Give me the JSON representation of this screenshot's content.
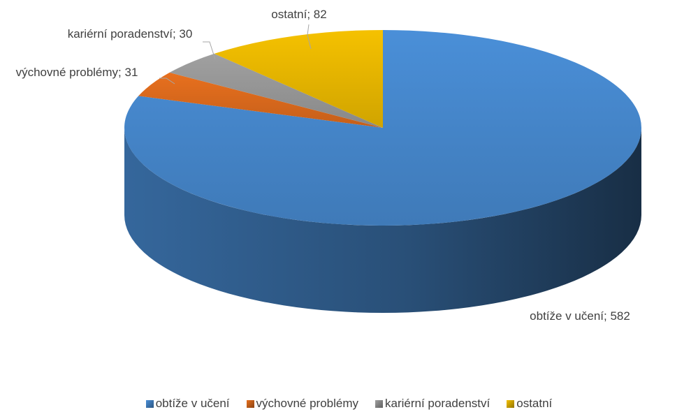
{
  "chart_data": {
    "type": "pie",
    "categories": [
      "obtíže v učení",
      "výchovné problémy",
      "kariérní poradenství",
      "ostatní"
    ],
    "values": [
      582,
      31,
      30,
      82
    ],
    "value_labels": [
      "obtíže v učení; 582",
      "výchovné problémy; 31",
      "kariérní poradenství; 30",
      "ostatní; 82"
    ],
    "colors": [
      "#4a8fd8",
      "#e8701e",
      "#a0a0a0",
      "#f5c100"
    ],
    "legend": "bottom"
  }
}
